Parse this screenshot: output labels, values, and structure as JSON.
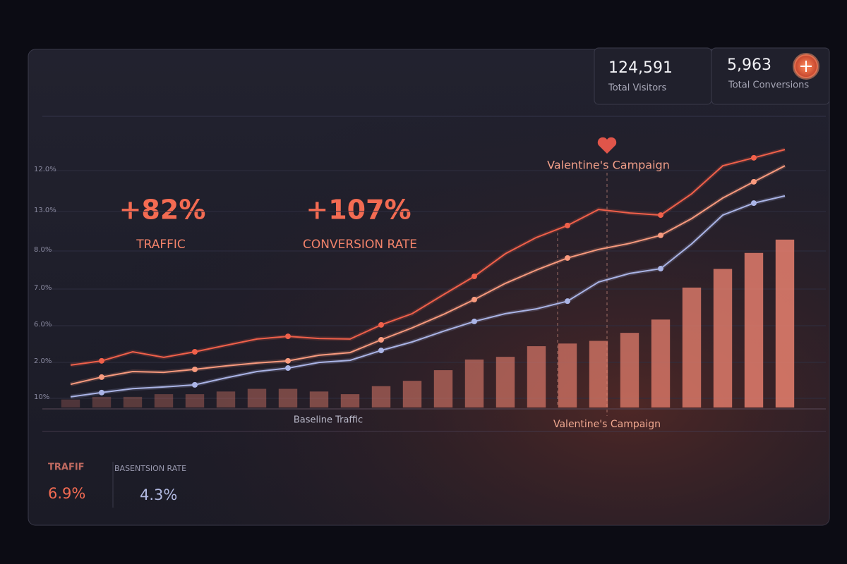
{
  "kpis": [
    {
      "value": "124,591",
      "label": "Total Visitors"
    },
    {
      "value": "5,963",
      "label": "Total Conversions"
    }
  ],
  "highlights": [
    {
      "value": "+82%",
      "label": "TRAFFIC"
    },
    {
      "value": "+107%",
      "label": "CONVERSION RATE"
    }
  ],
  "footer_stats": [
    {
      "label": "TRAFIF",
      "value": "6.9%"
    },
    {
      "label": "BASENTSION RATE",
      "value": "4.3%"
    }
  ],
  "chart_data": {
    "type": "combo",
    "axis_labels": [
      "12.0%",
      "13.0%",
      "8.0%",
      "7.0%",
      "6.0%",
      "2.0%",
      "10%"
    ],
    "annotations": [
      "Valentine's Campaign",
      "Baseline Traffic",
      "Valentine's Campaign"
    ],
    "categories": [
      null,
      null,
      null,
      null,
      null,
      null,
      null,
      null,
      null,
      null,
      null,
      null,
      null,
      null,
      null,
      null,
      null,
      null,
      null,
      null,
      null,
      null,
      null,
      null
    ],
    "ylim": [
      0,
      100
    ],
    "series": [
      {
        "type": "bar",
        "color": "#e8806e",
        "values": [
          3,
          4,
          4,
          5,
          5,
          6,
          7,
          7,
          6,
          5,
          8,
          10,
          14,
          18,
          19,
          23,
          24,
          25,
          28,
          33,
          45,
          52,
          58,
          63
        ]
      },
      {
        "type": "line",
        "color": "#aab4e6",
        "values": [
          4.0,
          5.6,
          7.1,
          7.7,
          8.5,
          11.1,
          13.5,
          14.8,
          16.9,
          17.7,
          21.4,
          24.6,
          28.6,
          32.3,
          35.2,
          37.0,
          39.9,
          47.1,
          50.3,
          52.1,
          61.4,
          72.2,
          76.7,
          79.4
        ]
      },
      {
        "type": "line",
        "color": "#f89a7e",
        "values": [
          8.7,
          11.4,
          13.5,
          13.2,
          14.3,
          15.6,
          16.7,
          17.5,
          19.6,
          20.6,
          25.4,
          29.9,
          34.9,
          40.5,
          46.6,
          51.6,
          56.1,
          59.3,
          61.6,
          64.6,
          70.9,
          78.6,
          84.7,
          90.7
        ]
      },
      {
        "type": "line",
        "color": "#f0604a",
        "values": [
          15.9,
          17.5,
          20.9,
          18.8,
          20.9,
          23.3,
          25.7,
          26.7,
          25.9,
          25.7,
          31.0,
          35.2,
          42.3,
          49.2,
          57.7,
          63.8,
          68.3,
          74.3,
          73.0,
          72.2,
          80.2,
          90.7,
          93.7,
          96.8
        ]
      }
    ]
  }
}
